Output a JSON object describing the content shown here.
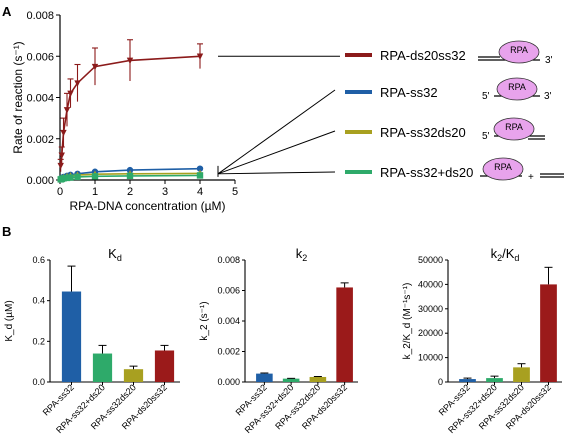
{
  "panel_labels": {
    "a": "A",
    "b": "B"
  },
  "chart_data": [
    {
      "type": "line",
      "xlabel": "RPA-DNA concentration (µM)",
      "ylabel": "Rate of reaction (s⁻¹)",
      "xlim": [
        0,
        5
      ],
      "ylim": [
        0,
        0.008
      ],
      "xticks": [
        "0",
        "1",
        "2",
        "3",
        "4",
        "5"
      ],
      "yticks": [
        "0.000",
        "0.002",
        "0.004",
        "0.006",
        "0.008"
      ],
      "series": [
        {
          "name": "RPA-ds20ss32",
          "color": "#8b1a1a",
          "marker": "triangle-down",
          "x": [
            0.02,
            0.05,
            0.1,
            0.2,
            0.3,
            0.5,
            1,
            2,
            4
          ],
          "y": [
            0.0007,
            0.0012,
            0.0023,
            0.0034,
            0.0042,
            0.0047,
            0.0055,
            0.0058,
            0.006
          ],
          "err": [
            0.0003,
            0.0004,
            0.0007,
            0.0008,
            0.0007,
            0.0009,
            0.0009,
            0.001,
            0.0006
          ]
        },
        {
          "name": "RPA-ss32",
          "color": "#1f5fa6",
          "marker": "circle",
          "x": [
            0.02,
            0.05,
            0.1,
            0.2,
            0.3,
            0.5,
            1,
            2,
            4
          ],
          "y": [
            5e-05,
            0.0001,
            0.00015,
            0.0002,
            0.00025,
            0.0003,
            0.0004,
            0.00048,
            0.00055
          ],
          "err": [
            2e-05,
            2e-05,
            3e-05,
            3e-05,
            3e-05,
            4e-05,
            4e-05,
            4e-05,
            4e-05
          ]
        },
        {
          "name": "RPA-ss32ds20",
          "color": "#a8a020",
          "marker": "triangle-up",
          "x": [
            0.02,
            0.05,
            0.1,
            0.2,
            0.3,
            0.5,
            1,
            2,
            4
          ],
          "y": [
            4e-05,
            8e-05,
            0.00012,
            0.00017,
            0.0002,
            0.00024,
            0.00028,
            0.0003,
            0.00032
          ],
          "err": [
            2e-05,
            2e-05,
            2e-05,
            3e-05,
            3e-05,
            3e-05,
            3e-05,
            3e-05,
            3e-05
          ]
        },
        {
          "name": "RPA-ss32+ds20",
          "color": "#2eaa6a",
          "marker": "square",
          "x": [
            0.02,
            0.05,
            0.1,
            0.2,
            0.3,
            0.5,
            1,
            2,
            4
          ],
          "y": [
            3e-05,
            5e-05,
            8e-05,
            0.0001,
            0.00012,
            0.00015,
            0.00018,
            0.0002,
            0.00022
          ],
          "err": [
            1e-05,
            2e-05,
            2e-05,
            2e-05,
            2e-05,
            2e-05,
            2e-05,
            2e-05,
            2e-05
          ]
        }
      ],
      "legend_position": "right",
      "schematic_labels": {
        "rpa": "RPA",
        "five": "5'",
        "three": "3'",
        "plus": "+"
      }
    },
    {
      "type": "bar",
      "title_main": "K",
      "title_sub": "d",
      "ylabel": "K_d (µM)",
      "ylim": [
        0,
        0.6
      ],
      "yticks": [
        "0.0",
        "0.2",
        "0.4",
        "0.6"
      ],
      "categories": [
        "RPA-ss32",
        "RPA-ss32+ds20",
        "RPA-ss32ds20",
        "RPA-ds20ss32"
      ],
      "values": [
        0.445,
        0.14,
        0.063,
        0.155
      ],
      "err": [
        0.125,
        0.04,
        0.015,
        0.025
      ],
      "colors": [
        "#1f5fa6",
        "#2eaa6a",
        "#a8a020",
        "#9b1a1a"
      ]
    },
    {
      "type": "bar",
      "title_main": "k",
      "title_sub": "2",
      "ylabel": "k_2 (s⁻¹)",
      "ylim": [
        0,
        0.008
      ],
      "yticks": [
        "0.000",
        "0.002",
        "0.004",
        "0.006",
        "0.008"
      ],
      "categories": [
        "RPA-ss32",
        "RPA-ss32+ds20",
        "RPA-ss32ds20",
        "RPA-ds20ss32"
      ],
      "values": [
        0.00055,
        0.00022,
        0.00033,
        0.0062
      ],
      "err": [
        4e-05,
        2e-05,
        3e-05,
        0.0003
      ],
      "colors": [
        "#1f5fa6",
        "#2eaa6a",
        "#a8a020",
        "#9b1a1a"
      ]
    },
    {
      "type": "bar",
      "title_main": "k",
      "title_sub": "2",
      "title_mid": "/K",
      "title_sub2": "d",
      "ylabel": "k_2/K_d (M⁻¹s⁻¹)",
      "ylim": [
        0,
        50000
      ],
      "yticks": [
        "0",
        "10000",
        "20000",
        "30000",
        "40000",
        "50000"
      ],
      "categories": [
        "RPA-ss32",
        "RPA-ss32+ds20",
        "RPA-ss32ds20",
        "RPA-ds20ss32"
      ],
      "values": [
        1200,
        1600,
        6000,
        40000
      ],
      "err": [
        400,
        800,
        1500,
        7000
      ],
      "colors": [
        "#1f5fa6",
        "#2eaa6a",
        "#a8a020",
        "#9b1a1a"
      ]
    }
  ]
}
